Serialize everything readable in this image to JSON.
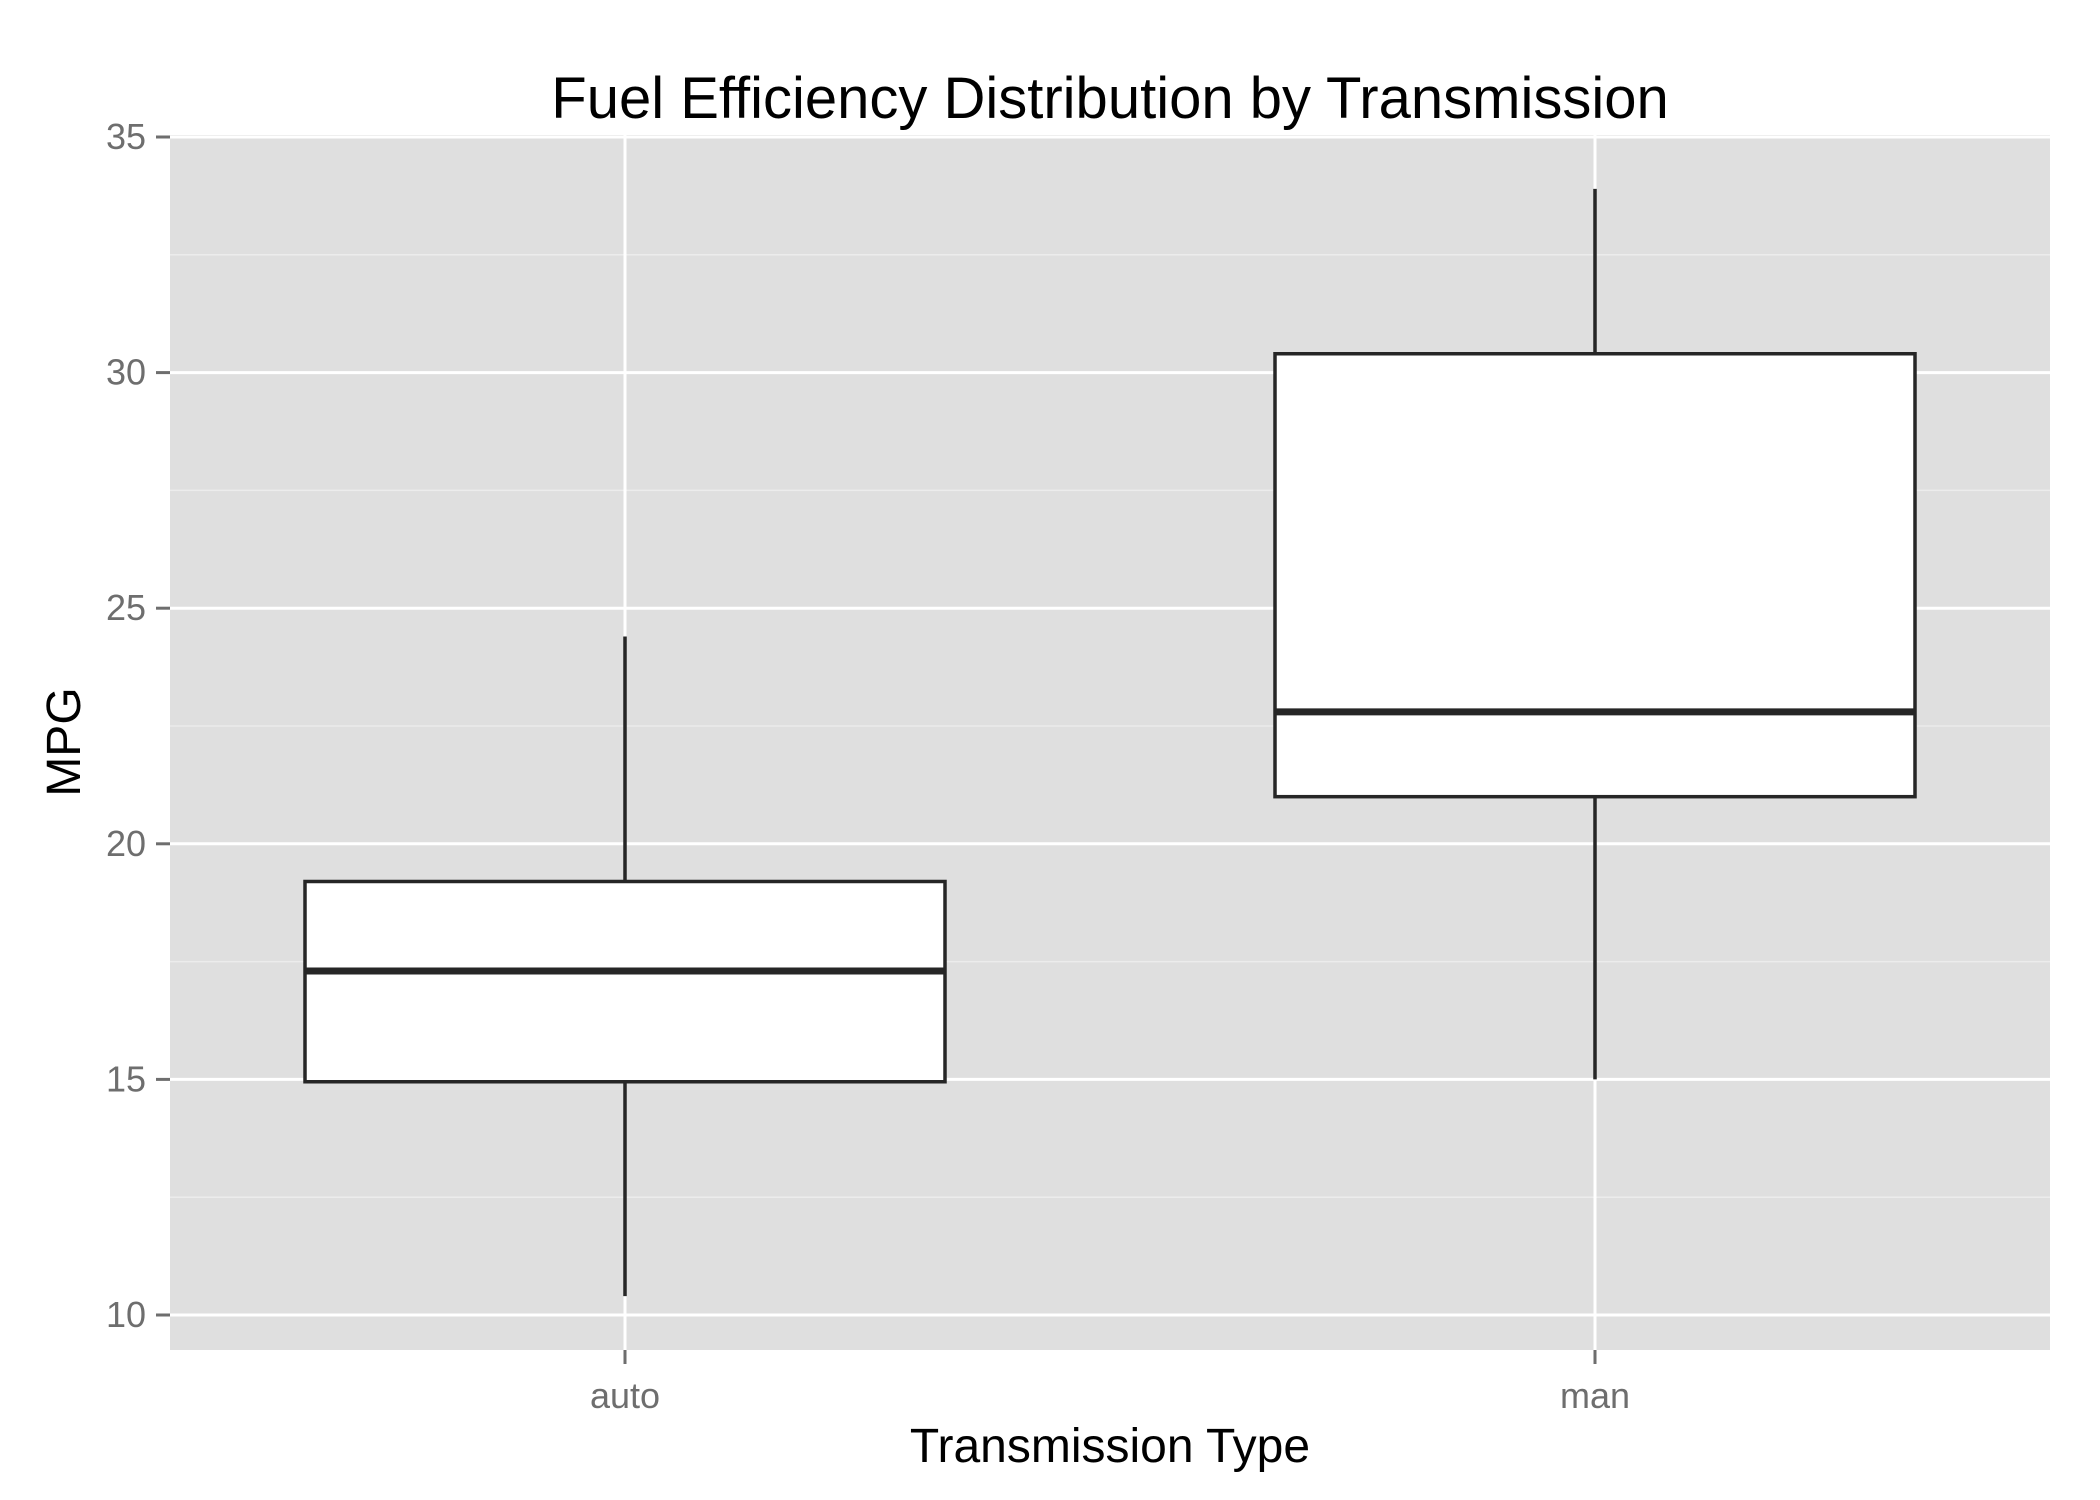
{
  "chart_data": {
    "type": "boxplot",
    "title": "Fuel Efficiency Distribution by Transmission",
    "xlabel": "Transmission Type",
    "ylabel": "MPG",
    "ylim": [
      9.2,
      35
    ],
    "y_ticks": [
      10,
      15,
      20,
      25,
      30,
      35
    ],
    "y_tick_labels": [
      "10",
      "15",
      "20",
      "25",
      "30",
      "35"
    ],
    "categories": [
      "auto",
      "man"
    ],
    "boxes": [
      {
        "category": "auto",
        "min": 10.4,
        "q1": 14.95,
        "median": 17.3,
        "q3": 19.2,
        "max": 24.4
      },
      {
        "category": "man",
        "min": 15.0,
        "q1": 21.0,
        "median": 22.8,
        "q3": 30.4,
        "max": 33.9
      }
    ],
    "grid": true,
    "colors": {
      "panel_background": "#dfdfdf",
      "grid_major": "#ffffff",
      "grid_minor": "#ececec",
      "box_fill": "#ffffff",
      "box_stroke": "#262626",
      "tick_label": "#6e6e6e",
      "tick_mark": "#6e6e6e"
    }
  }
}
